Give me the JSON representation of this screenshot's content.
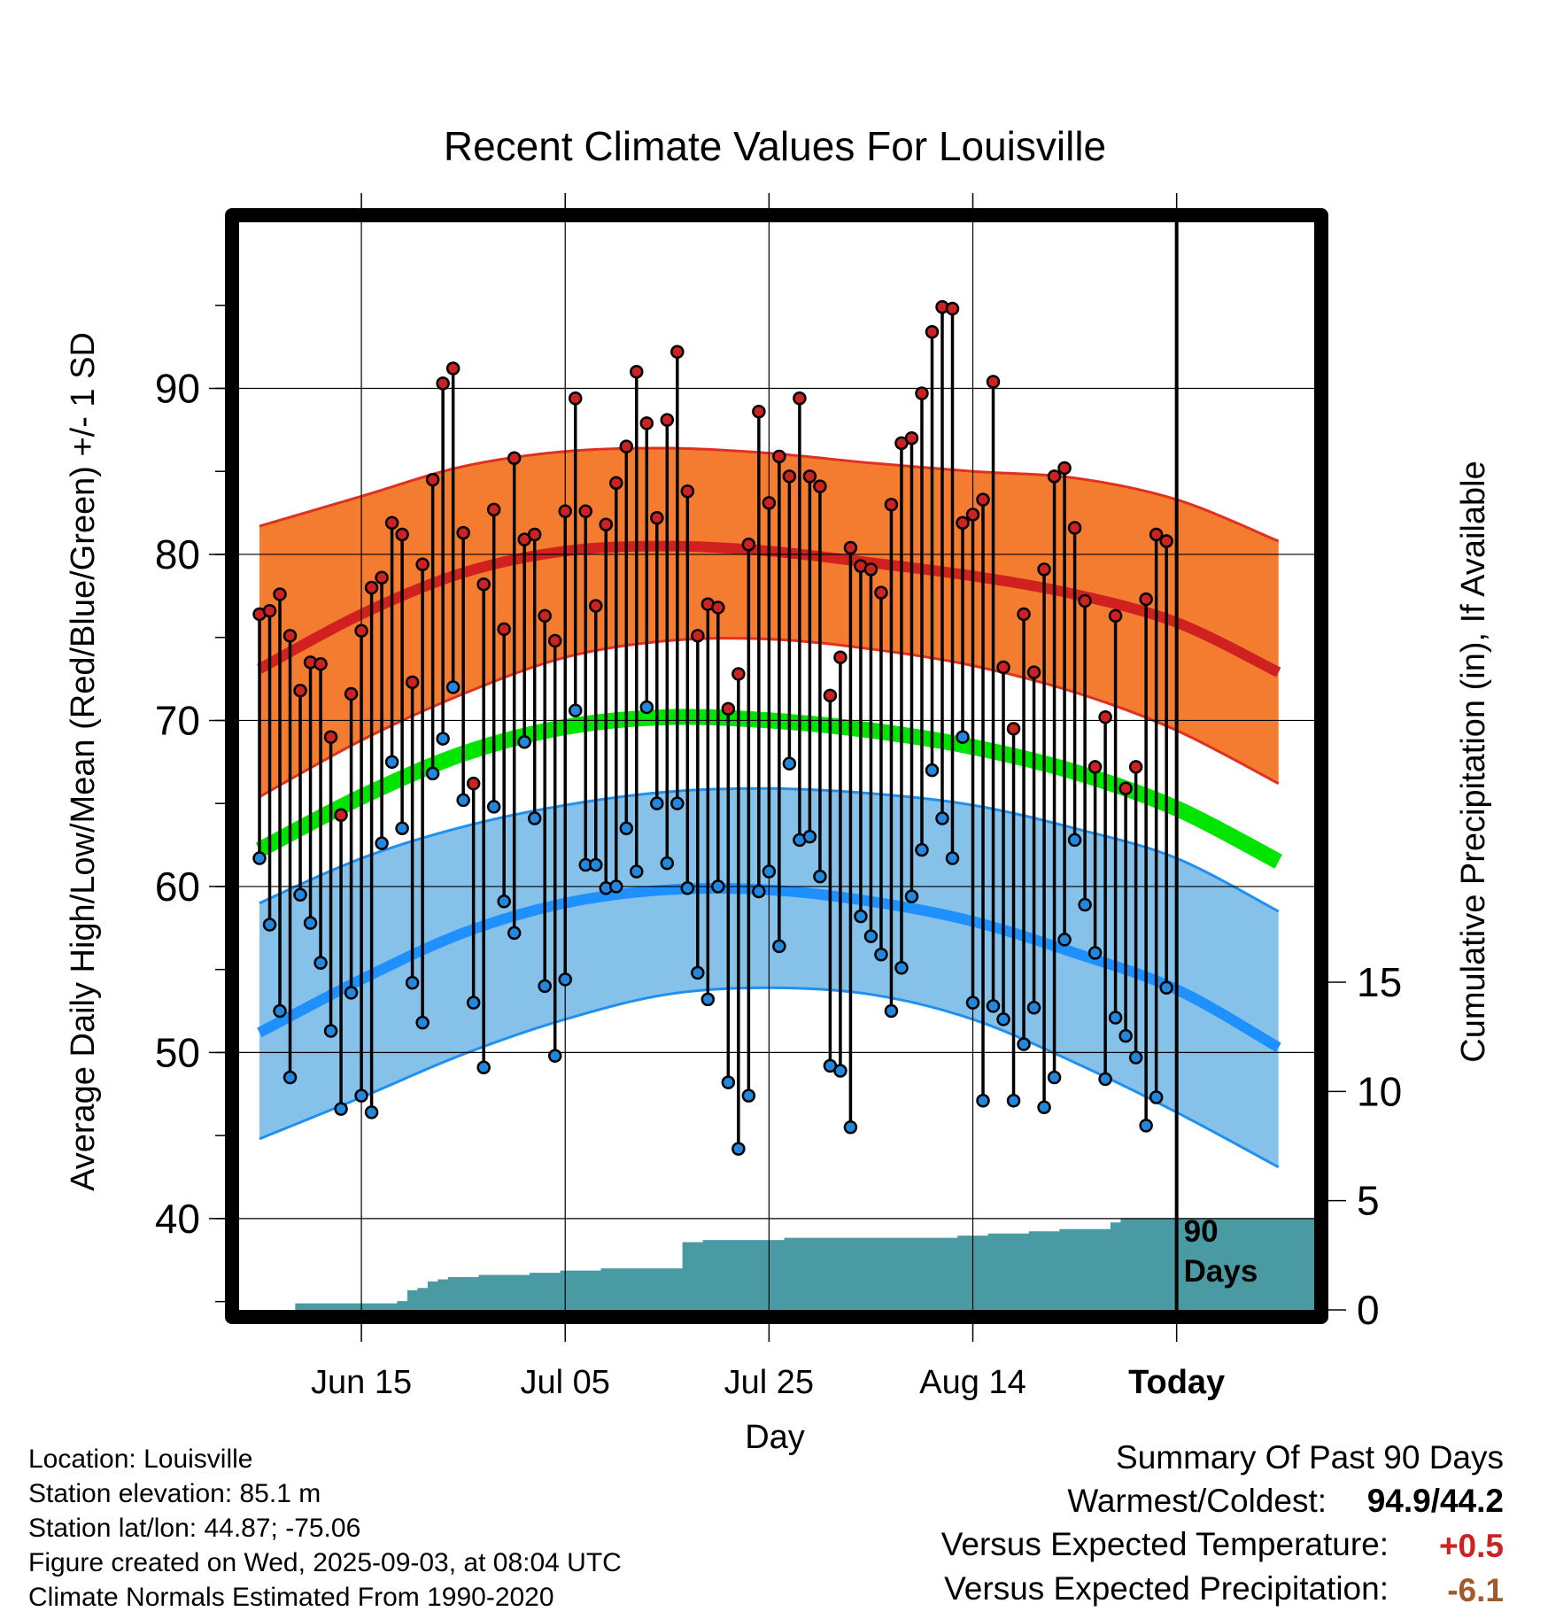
{
  "chart_data": {
    "type": "line",
    "title": "Recent Climate Values For Louisville",
    "xlabel": "Day",
    "ylabel": "Average Daily High/Low/Mean (Red/Blue/Green) +/- 1 SD",
    "y2label": "Cumulative Precipitation (in), If Available",
    "x_tick_labels": [
      "Jun 15",
      "Jul 05",
      "Jul 25",
      "Aug 14",
      "Today"
    ],
    "y_ticks": [
      40,
      50,
      60,
      70,
      80,
      90
    ],
    "y2_ticks": [
      0,
      5,
      10,
      15
    ],
    "ylim": [
      34.5,
      100
    ],
    "y2lim": [
      0,
      15
    ],
    "today_label": "90\nDays",
    "grid": true,
    "x_days": [
      -90,
      -80,
      -70,
      -60,
      -50,
      -40,
      -30,
      -20,
      -10,
      0,
      10
    ],
    "normals": {
      "high_mean": [
        73.1,
        76.4,
        78.9,
        80.2,
        80.5,
        80.2,
        79.5,
        78.7,
        77.6,
        75.9,
        72.9
      ],
      "high_sd_upper": [
        81.7,
        83.5,
        85.3,
        86.2,
        86.4,
        86.1,
        85.5,
        85.0,
        84.6,
        83.3,
        80.8
      ],
      "high_sd_lower": [
        65.4,
        68.8,
        71.6,
        73.8,
        74.8,
        74.9,
        74.3,
        73.3,
        71.7,
        69.4,
        66.2
      ],
      "low_mean": [
        51.2,
        54.4,
        57.2,
        59.0,
        59.8,
        59.8,
        59.1,
        57.9,
        56.0,
        53.8,
        50.3
      ],
      "low_sd_upper": [
        59.0,
        61.7,
        63.6,
        64.9,
        65.7,
        65.9,
        65.6,
        64.9,
        63.5,
        61.7,
        58.5
      ],
      "low_sd_lower": [
        44.8,
        47.3,
        49.9,
        52.0,
        53.5,
        53.9,
        53.5,
        52.0,
        49.4,
        46.4,
        43.1
      ],
      "mean": [
        62.2,
        65.4,
        68.0,
        69.6,
        70.2,
        70.0,
        69.4,
        68.4,
        66.9,
        64.7,
        61.5
      ]
    },
    "daily_high": [
      76.4,
      76.6,
      77.6,
      75.1,
      71.8,
      73.5,
      73.4,
      69.0,
      64.3,
      71.6,
      75.4,
      78.0,
      78.6,
      81.9,
      81.2,
      72.3,
      79.4,
      84.5,
      90.3,
      91.2,
      81.3,
      66.2,
      78.2,
      82.7,
      75.5,
      85.8,
      80.9,
      81.2,
      76.3,
      74.8,
      82.6,
      89.4,
      82.6,
      76.9,
      81.8,
      84.3,
      86.5,
      91.0,
      87.9,
      82.2,
      88.1,
      92.2,
      83.8,
      75.1,
      77.0,
      76.8,
      70.7,
      72.8,
      80.6,
      88.6,
      83.1,
      85.9,
      84.7,
      89.4,
      84.7,
      84.1,
      71.5,
      73.8,
      80.4,
      79.3,
      79.1,
      77.7,
      83.0,
      86.7,
      87.0,
      89.7,
      93.4,
      94.9,
      94.8,
      81.9,
      82.4,
      83.3,
      90.4,
      73.2,
      69.5,
      76.4,
      72.9,
      79.1,
      84.7,
      85.2,
      81.6,
      77.2,
      67.2,
      70.2,
      76.3,
      65.9,
      67.2,
      77.3,
      81.2,
      80.8
    ],
    "daily_low": [
      61.7,
      57.7,
      52.5,
      48.5,
      59.5,
      57.8,
      55.4,
      51.3,
      46.6,
      53.6,
      47.4,
      46.4,
      62.6,
      67.5,
      63.5,
      54.2,
      51.8,
      66.8,
      68.9,
      72.0,
      65.2,
      53.0,
      49.1,
      64.8,
      59.1,
      57.2,
      68.7,
      64.1,
      54.0,
      49.8,
      54.4,
      70.6,
      61.3,
      61.3,
      59.9,
      60.0,
      63.5,
      60.9,
      70.8,
      65.0,
      61.4,
      65.0,
      59.9,
      54.8,
      53.2,
      60.0,
      48.2,
      44.2,
      47.4,
      59.7,
      60.9,
      56.4,
      67.4,
      62.8,
      63.0,
      60.6,
      49.2,
      48.9,
      45.5,
      58.2,
      57.0,
      55.9,
      52.5,
      55.1,
      59.4,
      62.2,
      67.0,
      64.1,
      61.7,
      69.0,
      53.0,
      47.1,
      52.8,
      52.0,
      47.1,
      50.5,
      52.7,
      46.7,
      48.5,
      56.8,
      62.8,
      58.9,
      56.0,
      48.4,
      52.1,
      51.0,
      49.7,
      45.6,
      47.3,
      53.9
    ],
    "cumulative_precip": [
      0.0,
      0.0,
      0.0,
      0.0,
      0.3,
      0.3,
      0.3,
      0.3,
      0.3,
      0.3,
      0.3,
      0.3,
      0.3,
      0.3,
      0.4,
      0.9,
      1.0,
      1.3,
      1.4,
      1.5,
      1.5,
      1.5,
      1.6,
      1.6,
      1.6,
      1.6,
      1.6,
      1.7,
      1.7,
      1.7,
      1.8,
      1.8,
      1.8,
      1.8,
      1.9,
      1.9,
      1.9,
      1.9,
      1.9,
      1.9,
      1.9,
      1.9,
      3.1,
      3.1,
      3.2,
      3.2,
      3.2,
      3.2,
      3.2,
      3.2,
      3.2,
      3.2,
      3.3,
      3.3,
      3.3,
      3.3,
      3.3,
      3.3,
      3.3,
      3.3,
      3.3,
      3.3,
      3.3,
      3.3,
      3.3,
      3.3,
      3.3,
      3.3,
      3.3,
      3.4,
      3.4,
      3.4,
      3.5,
      3.5,
      3.5,
      3.5,
      3.6,
      3.6,
      3.6,
      3.7,
      3.7,
      3.7,
      3.7,
      3.7,
      4.0,
      4.2,
      4.2,
      4.2,
      4.2,
      4.2
    ],
    "colors": {
      "high_band": "#f47c30",
      "high_band_edge": "#e03020",
      "high_line": "#d02020",
      "low_band": "#85c1e8",
      "low_band_edge": "#2090f0",
      "low_line": "#1e90ff",
      "mean_line": "#00e400",
      "precip": "#4a9aa4",
      "high_dot": "#cc2222",
      "low_dot": "#2288dd"
    }
  },
  "info": {
    "location": "Location: Louisville",
    "elevation": "Station elevation: 85.1 m",
    "latlon": "Station lat/lon: 44.87; -75.06",
    "created": "Figure created on Wed, 2025-09-03, at 08:04 UTC",
    "normals": "Climate Normals Estimated From 1990-2020"
  },
  "summary": {
    "heading": "Summary Of Past 90 Days",
    "warmest_coldest_label": "Warmest/Coldest:",
    "warmest_coldest_value": "94.9/44.2",
    "temp_label": "Versus Expected Temperature:",
    "temp_value": "+0.5",
    "temp_color": "#cc2222",
    "precip_label": "Versus Expected Precipitation:",
    "precip_value": "-6.1",
    "precip_color": "#a05a2c"
  }
}
